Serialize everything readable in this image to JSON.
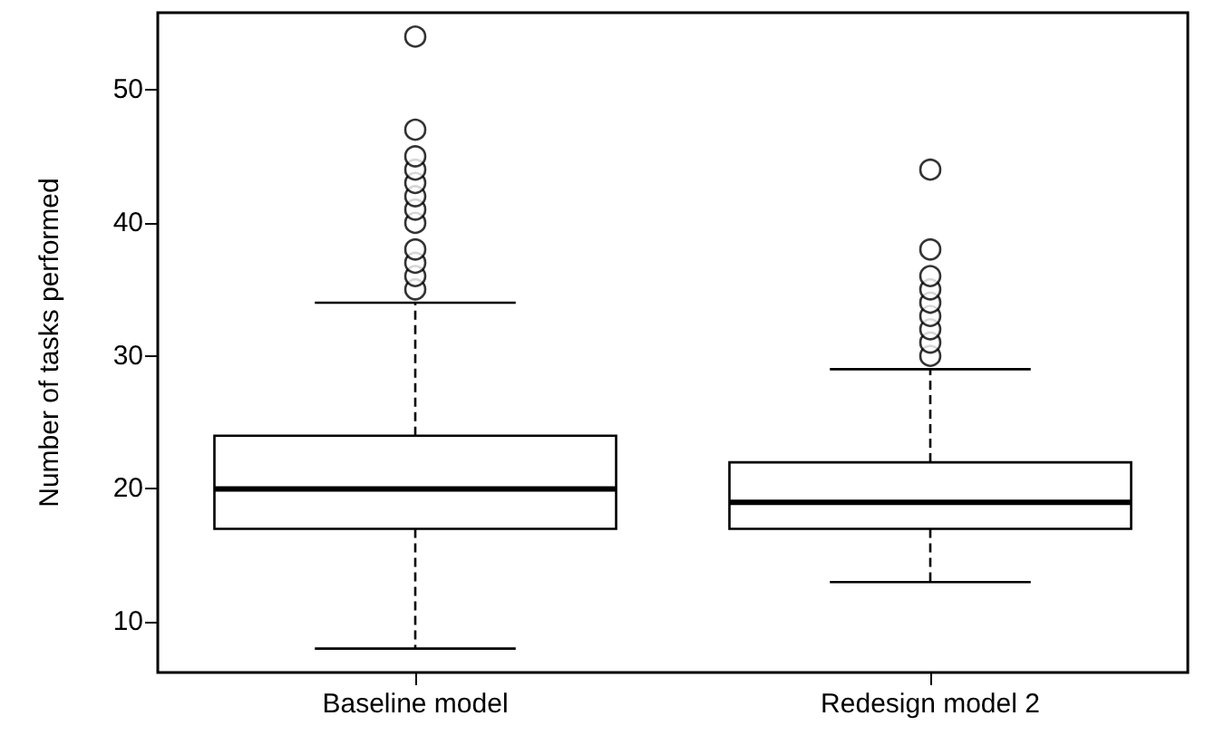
{
  "chart_data": {
    "type": "box",
    "ylabel": "Number of tasks performed",
    "categories": [
      "Baseline model",
      "Redesign model 2"
    ],
    "boxes": [
      {
        "low": 8,
        "q1": 17,
        "median": 20,
        "q3": 24,
        "high": 34,
        "outliers": [
          35,
          36,
          37,
          38,
          40,
          41,
          42,
          43,
          44,
          45,
          47,
          54
        ]
      },
      {
        "low": 13,
        "q1": 17,
        "median": 19,
        "q3": 22,
        "high": 29,
        "outliers": [
          30,
          31,
          32,
          33,
          34,
          35,
          36,
          38,
          44
        ]
      }
    ],
    "color": "#000000",
    "ylim": [
      6.2,
      55.8
    ],
    "yticks": [
      10,
      20,
      30,
      40,
      50
    ],
    "grid": false,
    "legend": false,
    "marker": "circle"
  }
}
